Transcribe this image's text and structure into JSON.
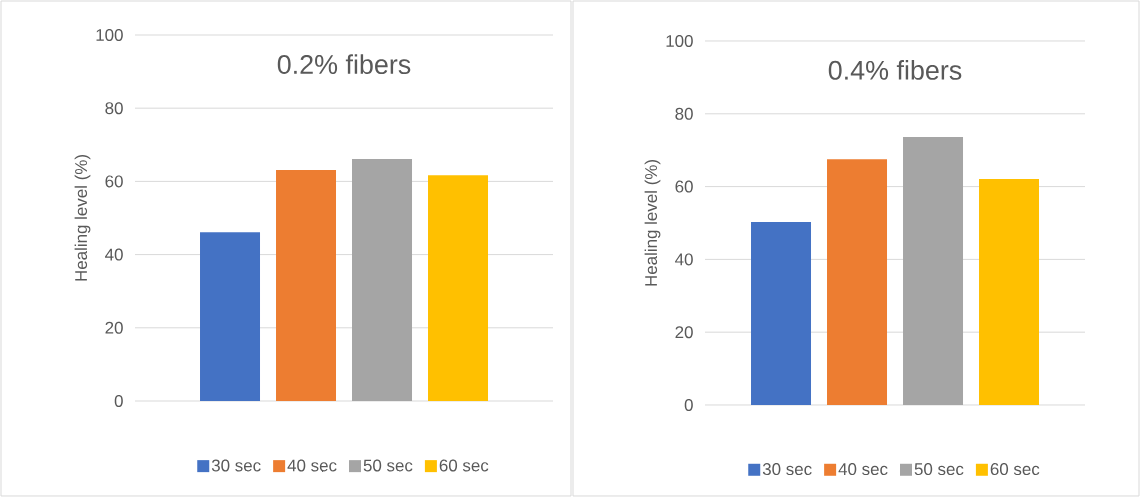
{
  "chart_data": [
    {
      "type": "bar",
      "title": "0.2% fibers",
      "ylabel": "Healing level (%)",
      "categories": [
        null
      ],
      "series": [
        {
          "name": "30 sec",
          "color": "#4472c4",
          "values": [
            46.1
          ]
        },
        {
          "name": "40 sec",
          "color": "#ed7d31",
          "values": [
            63.1
          ]
        },
        {
          "name": "50 sec",
          "color": "#a5a5a5",
          "values": [
            66.1
          ]
        },
        {
          "name": "60 sec",
          "color": "#ffc000",
          "values": [
            61.7
          ]
        }
      ],
      "ylim": [
        0,
        100
      ],
      "yticks": [
        0,
        20,
        40,
        60,
        80,
        100
      ],
      "grid": "y",
      "legend": "bottom"
    },
    {
      "type": "bar",
      "title": "0.4% fibers",
      "ylabel": "Healing level (%)",
      "categories": [
        null
      ],
      "series": [
        {
          "name": "30 sec",
          "color": "#4472c4",
          "values": [
            50.3
          ]
        },
        {
          "name": "40 sec",
          "color": "#ed7d31",
          "values": [
            67.5
          ]
        },
        {
          "name": "50 sec",
          "color": "#a5a5a5",
          "values": [
            73.6
          ]
        },
        {
          "name": "60 sec",
          "color": "#ffc000",
          "values": [
            62.1
          ]
        }
      ],
      "ylim": [
        0,
        100
      ],
      "yticks": [
        0,
        20,
        40,
        60,
        80,
        100
      ],
      "grid": "y",
      "legend": "bottom"
    }
  ]
}
